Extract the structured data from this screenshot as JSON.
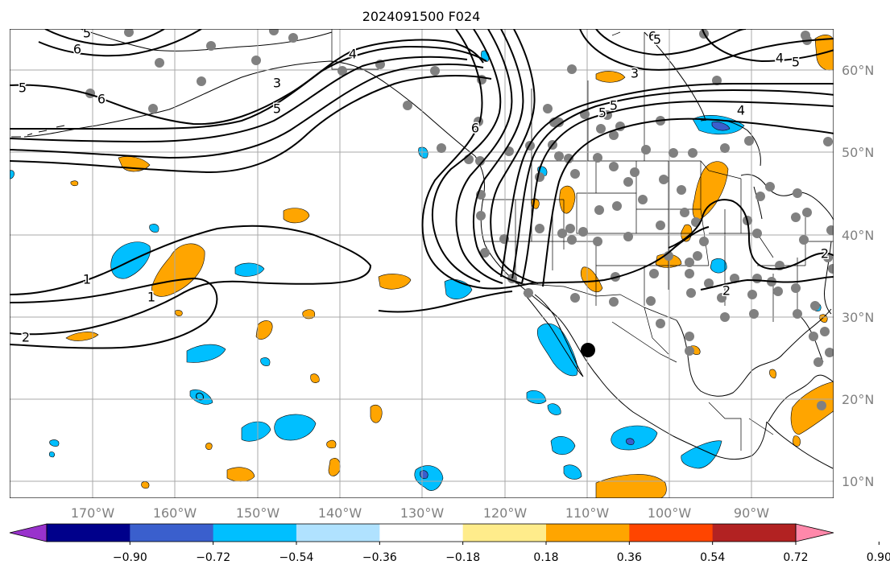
{
  "title": "2024091500 F024",
  "lon_labels": [
    "170°W",
    "160°W",
    "150°W",
    "140°W",
    "130°W",
    "120°W",
    "110°W",
    "100°W",
    "90°W"
  ],
  "lat_labels": [
    "60°N",
    "50°N",
    "40°N",
    "30°N",
    "20°N",
    "10°N"
  ],
  "colorbar": {
    "tick_labels": [
      "−0.90",
      "−0.72",
      "−0.54",
      "−0.36",
      "−0.18",
      "0.18",
      "0.36",
      "0.54",
      "0.72",
      "0.90"
    ],
    "colors": [
      "#9932CC",
      "#00008B",
      "#3A5FCD",
      "#00BFFF",
      "#B0E2FF",
      "#FFFFFF",
      "#FFEC8B",
      "#FFA500",
      "#FF4500",
      "#B22222",
      "#FF88AA"
    ]
  },
  "contour_labels": [
    "6",
    "5",
    "6",
    "5",
    "3",
    "4",
    "5",
    "6",
    "5",
    "5",
    "3",
    "4",
    "5",
    "6",
    "1",
    "1",
    "2",
    "2",
    "4",
    "2",
    "5"
  ],
  "colors": {
    "positive_fill": "#FFA500",
    "negative_fill": "#00BFFF",
    "contour": "#000000",
    "station_dot": "#808080",
    "grid": "#A9A9A9",
    "tick_text": "#808080"
  }
}
